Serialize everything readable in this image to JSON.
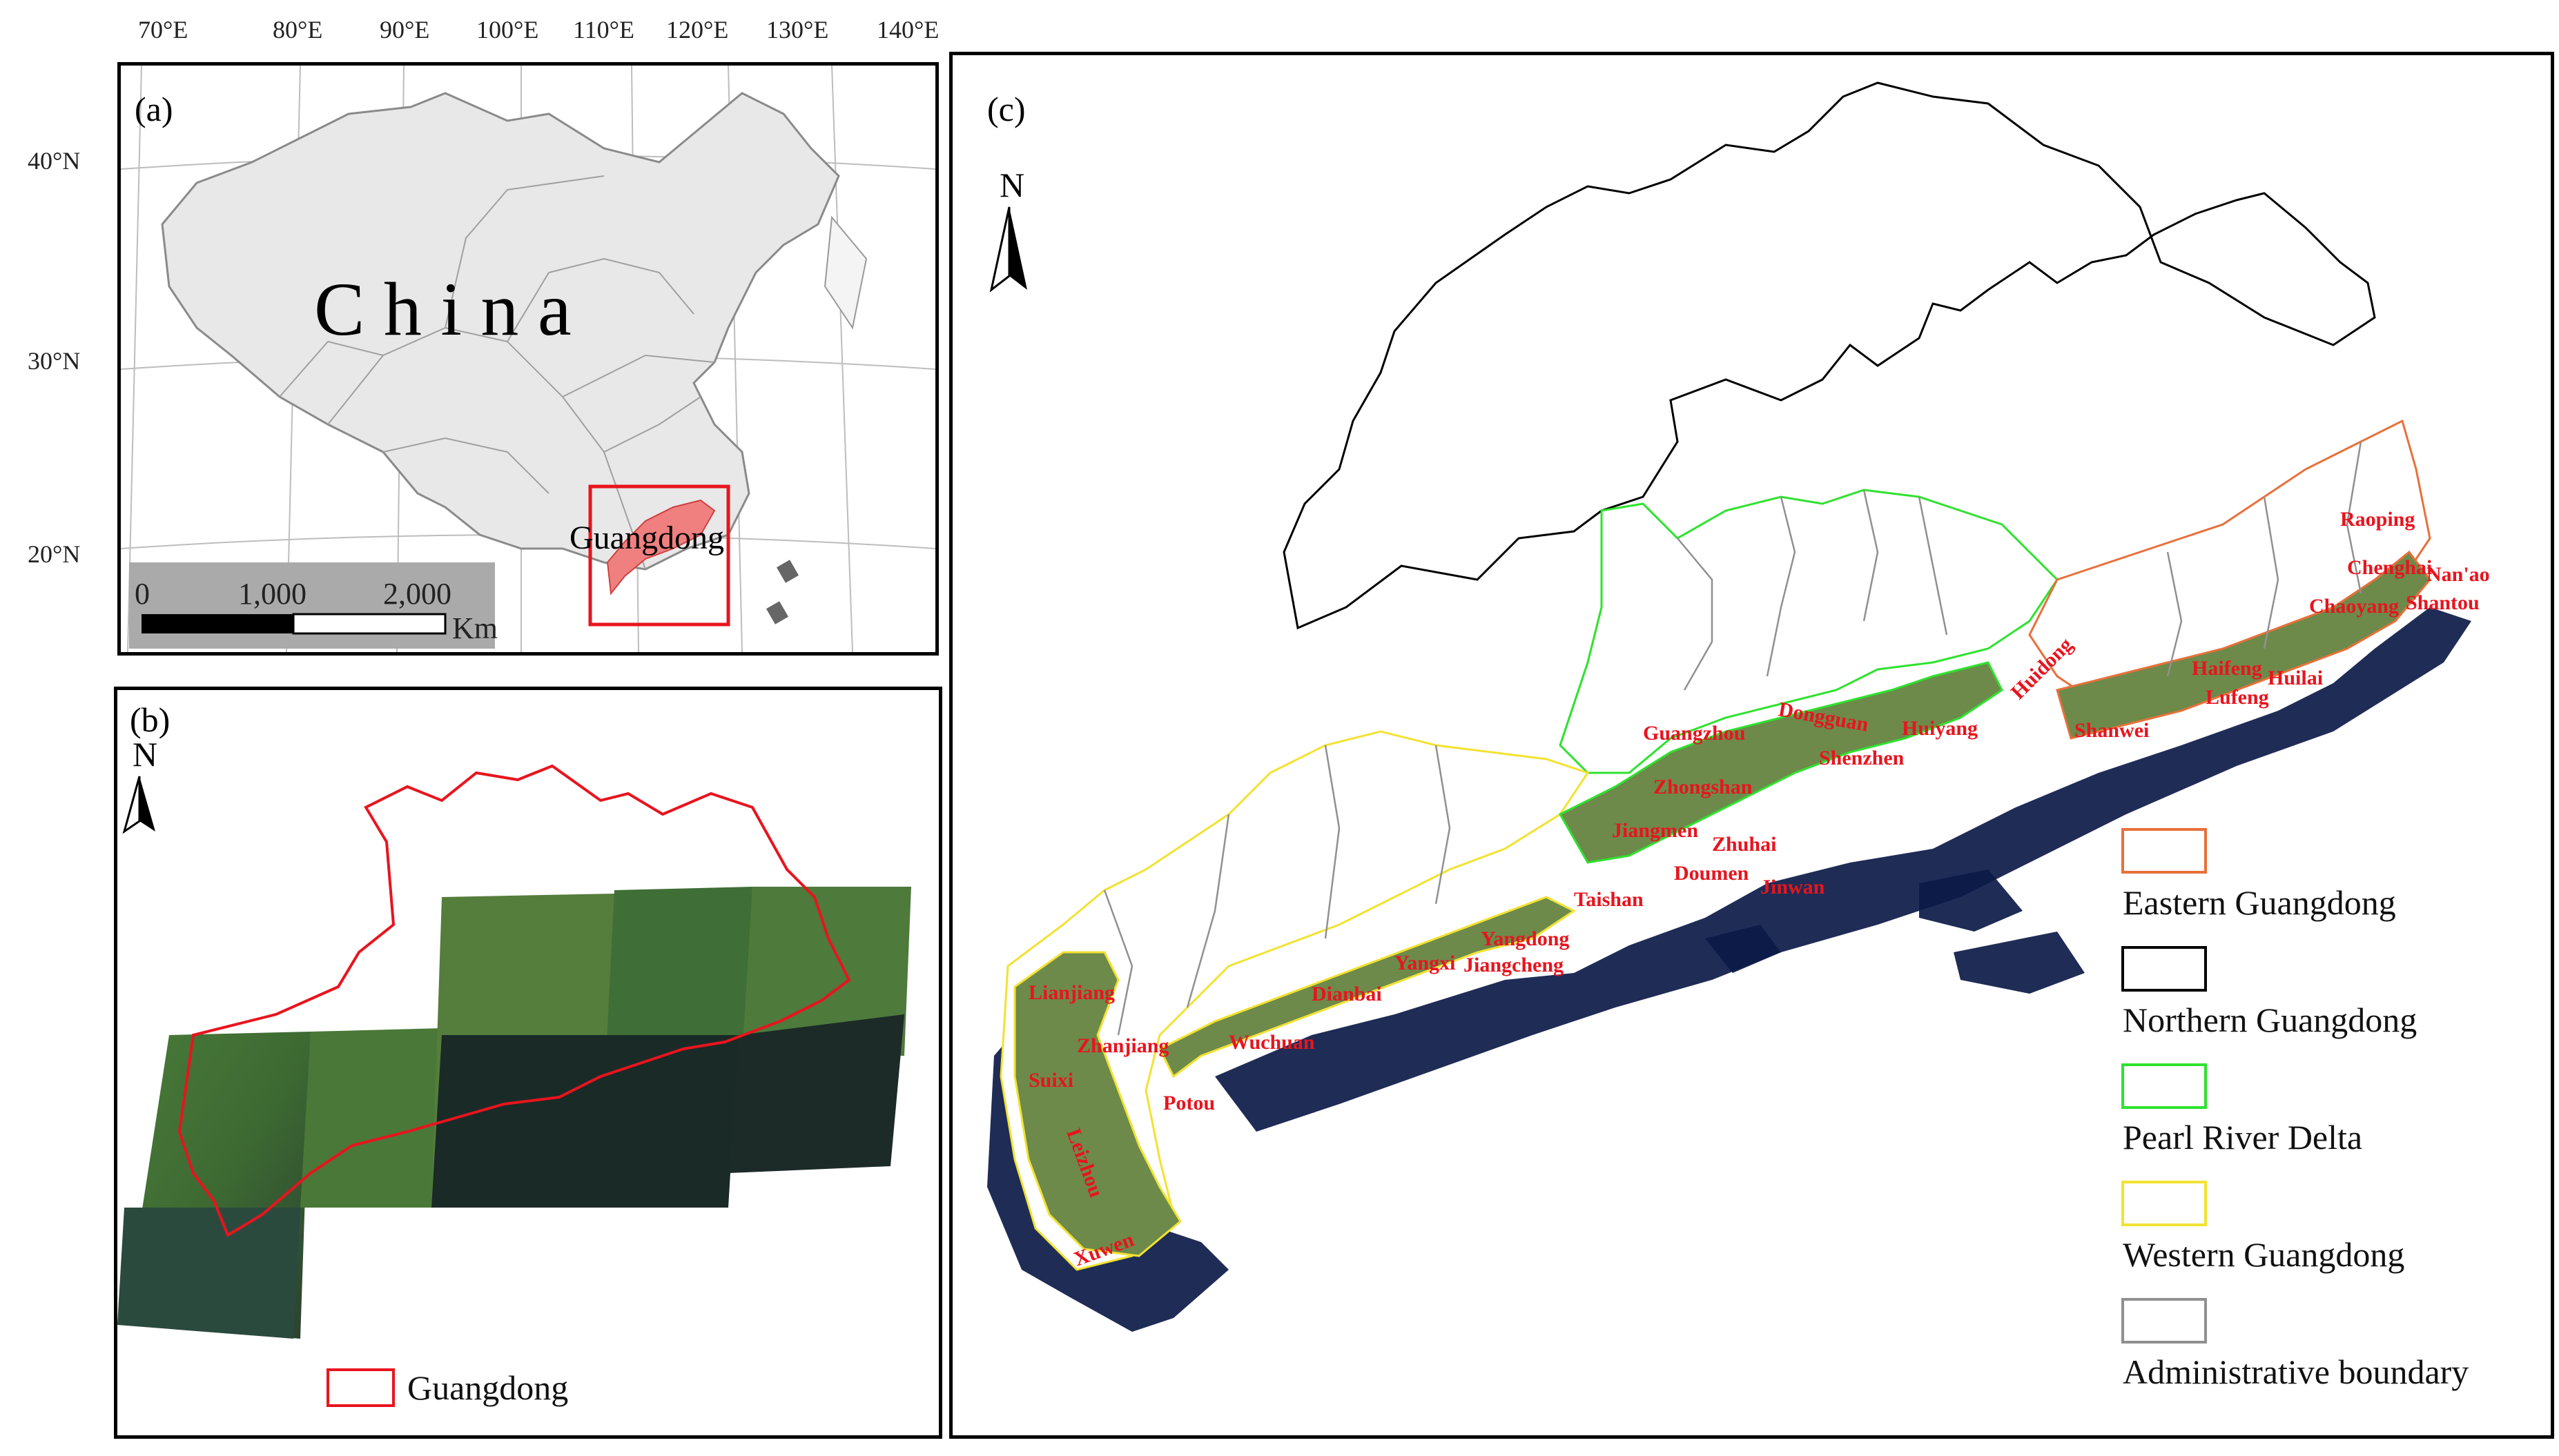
{
  "panel_a": {
    "label": "(a)",
    "country": "C h i n a",
    "province": "Guangdong",
    "lon_ticks": [
      "70°E",
      "80°E",
      "90°E",
      "100°E",
      "110°E",
      "120°E",
      "130°E",
      "140°E"
    ],
    "lat_ticks": [
      "40°N",
      "30°N",
      "20°N"
    ],
    "scalebar": {
      "l0": "0",
      "l1": "1,000",
      "l2": "2,000",
      "unit": "Km"
    }
  },
  "panel_b": {
    "label": "(b)",
    "north": "N",
    "legend": "Guangdong"
  },
  "panel_c": {
    "label": "(c)",
    "north": "N",
    "places": [
      "Raoping",
      "Chenghai",
      "Nan'ao",
      "Shantou",
      "Chaoyang",
      "Huilai",
      "Haifeng",
      "Lufeng",
      "Shanwei",
      "Huidong",
      "Huiyang",
      "Dongguan",
      "Shenzhen",
      "Guangzhou",
      "Zhongshan",
      "Jiangmen",
      "Zhuhai",
      "Doumen",
      "Jinwan",
      "Taishan",
      "Yangdong",
      "Jiangcheng",
      "Yangxi",
      "Dianbai",
      "Wuchuan",
      "Lianjiang",
      "Zhanjiang",
      "Suixi",
      "Potou",
      "Leizhou",
      "Xuwen"
    ],
    "legend": [
      {
        "label": "Eastern Guangdong",
        "color": "#e8703a"
      },
      {
        "label": "Northern Guangdong",
        "color": "#000000"
      },
      {
        "label": "Pearl River Delta",
        "color": "#2ee22e"
      },
      {
        "label": "Western Guangdong",
        "color": "#f2e232"
      },
      {
        "label": "Administrative boundary",
        "color": "#909090"
      }
    ]
  }
}
